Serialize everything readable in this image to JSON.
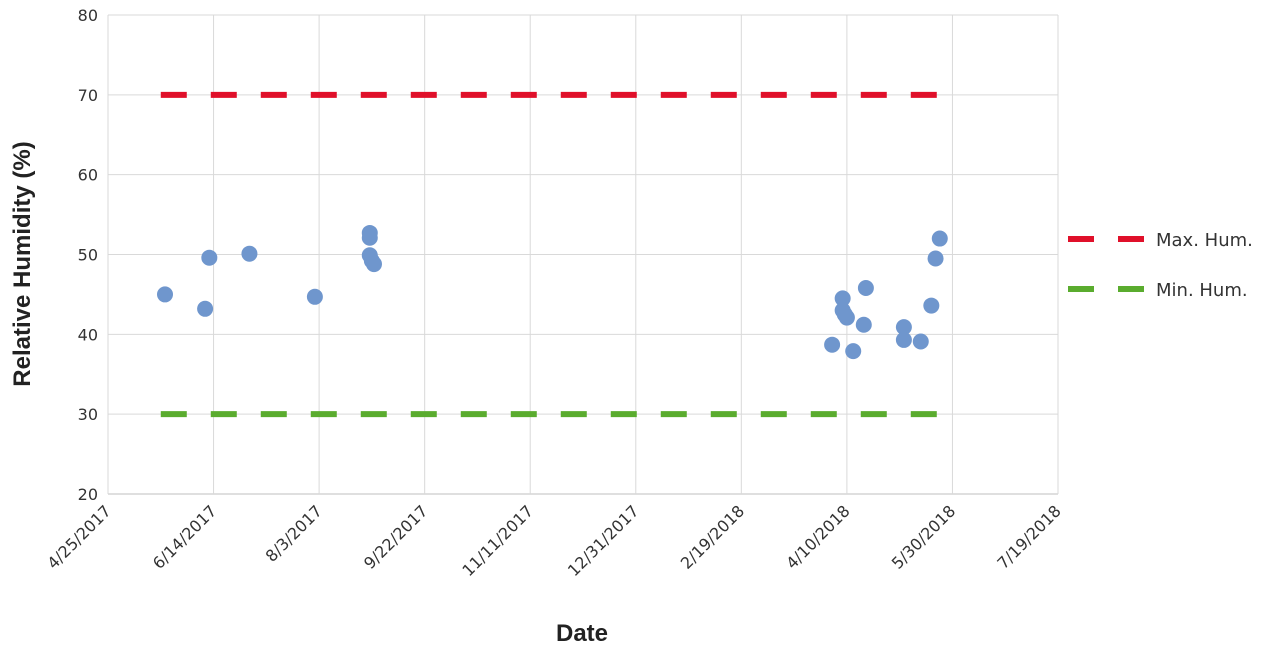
{
  "chart_data": {
    "type": "scatter",
    "title": "",
    "xlabel": "Date",
    "ylabel": "Relative Humidity (%)",
    "ylim": [
      20,
      80
    ],
    "yticks": [
      20,
      30,
      40,
      50,
      60,
      70,
      80
    ],
    "xlim": [
      "4/25/2017",
      "7/19/2018"
    ],
    "xticks": [
      "4/25/2017",
      "6/14/2017",
      "8/3/2017",
      "9/22/2017",
      "11/11/2017",
      "12/31/2017",
      "2/19/2018",
      "4/10/2018",
      "5/30/2018",
      "7/19/2018"
    ],
    "xtick_days": [
      0,
      50,
      100,
      150,
      200,
      250,
      300,
      350,
      400,
      450
    ],
    "grid": true,
    "legend_position": "right",
    "series": [
      {
        "name": "Relative Humidity",
        "kind": "points",
        "color": "#6f96cd",
        "x_days": [
          27,
          46,
          48,
          67,
          98,
          124,
          124,
          124,
          125,
          126,
          343,
          348,
          348,
          349,
          350,
          353,
          358,
          359,
          377,
          377,
          385,
          390,
          392,
          394
        ],
        "y": [
          45,
          43.2,
          49.6,
          50.1,
          44.7,
          52.7,
          52.1,
          49.9,
          49.2,
          48.8,
          38.7,
          44.5,
          43.0,
          42.5,
          42.1,
          37.9,
          41.2,
          45.8,
          40.9,
          39.3,
          39.1,
          43.6,
          49.5,
          52.0
        ]
      },
      {
        "name": "Max. Hum.",
        "kind": "dashed-line",
        "color": "#e0102a",
        "x_days": [
          25,
          395
        ],
        "y": [
          70,
          70
        ]
      },
      {
        "name": "Min. Hum.",
        "kind": "dashed-line",
        "color": "#5aac2e",
        "x_days": [
          25,
          395
        ],
        "y": [
          30,
          30
        ]
      }
    ],
    "legend": [
      {
        "label": "Max. Hum.",
        "color": "#e0102a"
      },
      {
        "label": "Min. Hum.",
        "color": "#5aac2e"
      }
    ]
  }
}
